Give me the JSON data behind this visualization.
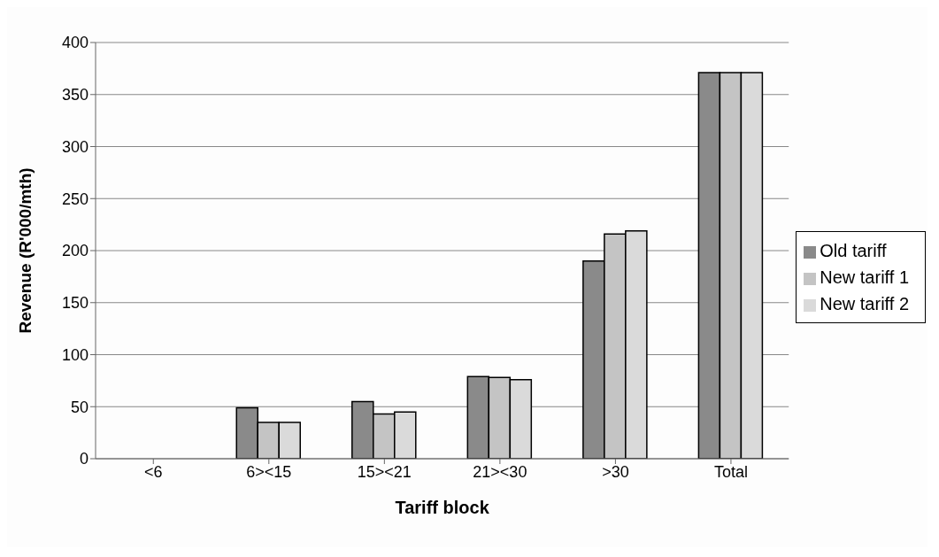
{
  "chart_data": {
    "type": "bar",
    "xlabel": "Tariff block",
    "ylabel": "Revenue (R'000/mth)",
    "categories": [
      "<6",
      "6><15",
      "15><21",
      "21><30",
      ">30",
      "Total"
    ],
    "series": [
      {
        "name": "Old tariff",
        "color": "#8a8a8a",
        "values": [
          0,
          49,
          55,
          79,
          190,
          371
        ]
      },
      {
        "name": "New tariff 1",
        "color": "#c4c4c4",
        "values": [
          0,
          35,
          43,
          78,
          216,
          371
        ]
      },
      {
        "name": "New tariff 2",
        "color": "#dadada",
        "values": [
          0,
          35,
          45,
          76,
          219,
          371
        ]
      }
    ],
    "ylim": [
      0,
      400
    ],
    "yticks": [
      0,
      50,
      100,
      150,
      200,
      250,
      300,
      350,
      400
    ],
    "grid": "y",
    "legend": "right"
  }
}
